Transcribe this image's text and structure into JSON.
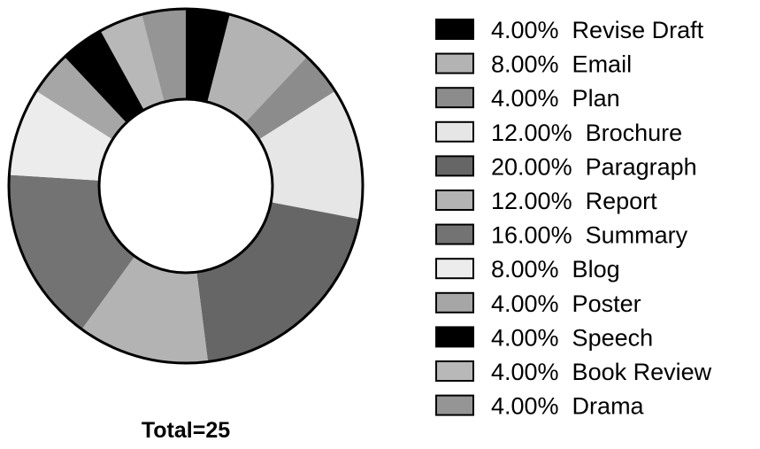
{
  "chart_data": {
    "type": "pie",
    "subtype": "donut",
    "total_label": "Total=25",
    "total": 25,
    "start_angle_deg": 0,
    "direction": "clockwise",
    "slices": [
      {
        "label": "Revise Draft",
        "percent_label": "4.00%",
        "value": 1,
        "color": "#000000"
      },
      {
        "label": "Email",
        "percent_label": "8.00%",
        "value": 2,
        "color": "#b3b3b3"
      },
      {
        "label": "Plan",
        "percent_label": "4.00%",
        "value": 1,
        "color": "#8c8c8c"
      },
      {
        "label": "Brochure",
        "percent_label": "12.00%",
        "value": 3,
        "color": "#e6e6e6"
      },
      {
        "label": "Paragraph",
        "percent_label": "20.00%",
        "value": 5,
        "color": "#666666"
      },
      {
        "label": "Report",
        "percent_label": "12.00%",
        "value": 3,
        "color": "#b3b3b3"
      },
      {
        "label": "Summary",
        "percent_label": "16.00%",
        "value": 4,
        "color": "#737373"
      },
      {
        "label": "Blog",
        "percent_label": "8.00%",
        "value": 2,
        "color": "#ececec"
      },
      {
        "label": "Poster",
        "percent_label": "4.00%",
        "value": 1,
        "color": "#a6a6a6"
      },
      {
        "label": "Speech",
        "percent_label": "4.00%",
        "value": 1,
        "color": "#000000"
      },
      {
        "label": "Book Review",
        "percent_label": "4.00%",
        "value": 1,
        "color": "#b8b8b8"
      },
      {
        "label": "Drama",
        "percent_label": "4.00%",
        "value": 1,
        "color": "#959595"
      }
    ],
    "legend_position": "right"
  }
}
